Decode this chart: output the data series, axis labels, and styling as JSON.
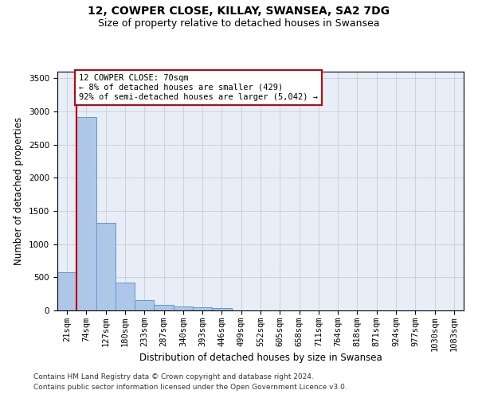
{
  "title": "12, COWPER CLOSE, KILLAY, SWANSEA, SA2 7DG",
  "subtitle": "Size of property relative to detached houses in Swansea",
  "xlabel": "Distribution of detached houses by size in Swansea",
  "ylabel": "Number of detached properties",
  "bin_labels": [
    "21sqm",
    "74sqm",
    "127sqm",
    "180sqm",
    "233sqm",
    "287sqm",
    "340sqm",
    "393sqm",
    "446sqm",
    "499sqm",
    "552sqm",
    "605sqm",
    "658sqm",
    "711sqm",
    "764sqm",
    "818sqm",
    "871sqm",
    "924sqm",
    "977sqm",
    "1030sqm",
    "1083sqm"
  ],
  "bar_values": [
    575,
    2920,
    1320,
    415,
    155,
    80,
    55,
    45,
    40,
    0,
    0,
    0,
    0,
    0,
    0,
    0,
    0,
    0,
    0,
    0,
    0
  ],
  "bar_color": "#aec6e8",
  "bar_edge_color": "#5b9bd5",
  "annotation_text": "12 COWPER CLOSE: 70sqm\n← 8% of detached houses are smaller (429)\n92% of semi-detached houses are larger (5,042) →",
  "annotation_box_color": "#ffffff",
  "annotation_box_edge_color": "#cc0000",
  "red_line_color": "#cc0000",
  "ylim": [
    0,
    3600
  ],
  "yticks": [
    0,
    500,
    1000,
    1500,
    2000,
    2500,
    3000,
    3500
  ],
  "grid_color": "#cccccc",
  "background_color": "#e8eef8",
  "footer_line1": "Contains HM Land Registry data © Crown copyright and database right 2024.",
  "footer_line2": "Contains public sector information licensed under the Open Government Licence v3.0.",
  "title_fontsize": 10,
  "subtitle_fontsize": 9,
  "xlabel_fontsize": 8.5,
  "ylabel_fontsize": 8.5,
  "tick_fontsize": 7.5,
  "footer_fontsize": 6.5
}
